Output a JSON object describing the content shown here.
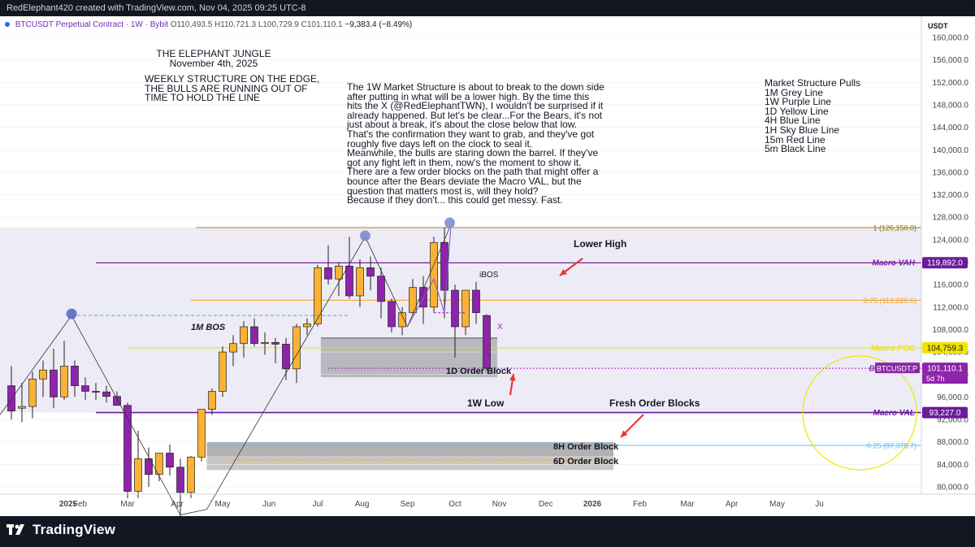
{
  "header": {
    "attribution": "RedElephant420 created with TradingView.com, Nov 04, 2025 09:25 UTC-8",
    "symbol_line": "BTCUSDT Perpetual Contract · 1W · Bybit",
    "ohlc": "O110,493.5  H110,721.3  L100,729.9  C101,110.1",
    "change": "−9,383.4 (−8.49%)",
    "currency": "USDT"
  },
  "footer": {
    "brand": "TradingView"
  },
  "text_notes": {
    "title_line1": "THE ELEPHANT JUNGLE",
    "title_line2": "November 4th, 2025",
    "subtitle": "WEEKLY STRUCTURE ON THE EDGE,\nTHE BULLS ARE RUNNING OUT OF\nTIME TO HOLD THE LINE",
    "body": "The 1W Market Structure is about to break to the down side\nafter putting in what will be a lower high. By the time this\nhits the X (@RedElephantTWN), I wouldn't be surprised if it\nalready happened. But let's be clear...For the Bears, it's not\njust about a break, it's about the close below that low.\nThat's the confirmation they want to grab, and they've got\nroughly five days left on the clock to seal it.\nMeanwhile, the bulls are staring down the barrel. If they've\ngot any fight left in them, now's the moment to show it.\nThere are a few order blocks on the path that might offer a\nbounce after the Bears deviate the Macro VAL, but the\nquestion that matters most is, will they hold?\nBecause if they don't... this could get messy. Fast.",
    "legend": "Market Structure Pulls\n1M Grey Line\n1W Purple Line\n1D Yellow Line\n4H Blue Line\n1H Sky Blue Line\n15m Red Line\n5m Black Line"
  },
  "chart_data": {
    "type": "candlestick",
    "symbol": "BTCUSDT.P",
    "timeframe": "1W",
    "ylim": [
      78000,
      162000
    ],
    "y_ticks": [
      80000,
      84000,
      88000,
      92000,
      96000,
      100000,
      104000,
      108000,
      112000,
      116000,
      120000,
      124000,
      128000,
      132000,
      136000,
      140000,
      144000,
      148000,
      152000,
      156000,
      160000
    ],
    "y_tick_labels": [
      "80,000.0",
      "84,000.0",
      "88,000.0",
      "92,000.0",
      "96,000.0",
      "100,000.0",
      "104,000.0",
      "108,000.0",
      "112,000.0",
      "116,000.0",
      "120,000.0",
      "124,000.0",
      "128,000.0",
      "132,000.0",
      "136,000.0",
      "140,000.0",
      "144,000.0",
      "148,000.0",
      "152,000.0",
      "156,000.0",
      "160,000.0"
    ],
    "x_tick_labels": [
      "2025",
      "Feb",
      "Mar",
      "Apr",
      "May",
      "Jun",
      "Jul",
      "Aug",
      "Sep",
      "Oct",
      "Nov",
      "Dec",
      "2026",
      "Feb",
      "Mar",
      "Apr",
      "May",
      "Ju"
    ],
    "x_tick_index": [
      2,
      6.5,
      11,
      15.7,
      20,
      24.4,
      29,
      33.2,
      37.5,
      42,
      46.2,
      50.6,
      55,
      59.5,
      64,
      68.2,
      72.5,
      76.5
    ],
    "candles": [
      {
        "o": 98000,
        "h": 101500,
        "l": 92000,
        "c": 93500
      },
      {
        "o": 94000,
        "h": 98500,
        "l": 91500,
        "c": 94300
      },
      {
        "o": 94300,
        "h": 100500,
        "l": 92200,
        "c": 99200
      },
      {
        "o": 99200,
        "h": 102500,
        "l": 96000,
        "c": 100800
      },
      {
        "o": 100800,
        "h": 104600,
        "l": 94000,
        "c": 96000
      },
      {
        "o": 96000,
        "h": 106000,
        "l": 95500,
        "c": 101500
      },
      {
        "o": 101500,
        "h": 102500,
        "l": 96000,
        "c": 98000
      },
      {
        "o": 98000,
        "h": 99500,
        "l": 95500,
        "c": 97000
      },
      {
        "o": 97000,
        "h": 98500,
        "l": 95500,
        "c": 96900
      },
      {
        "o": 96900,
        "h": 98000,
        "l": 95000,
        "c": 96100
      },
      {
        "o": 96100,
        "h": 97000,
        "l": 94500,
        "c": 94500
      },
      {
        "o": 94500,
        "h": 95000,
        "l": 78000,
        "c": 79200
      },
      {
        "o": 79200,
        "h": 90000,
        "l": 78000,
        "c": 85000
      },
      {
        "o": 85000,
        "h": 87000,
        "l": 80000,
        "c": 82200
      },
      {
        "o": 82200,
        "h": 86000,
        "l": 81000,
        "c": 86000
      },
      {
        "o": 86000,
        "h": 87500,
        "l": 82000,
        "c": 83500
      },
      {
        "o": 83500,
        "h": 85000,
        "l": 74500,
        "c": 79000
      },
      {
        "o": 79000,
        "h": 85500,
        "l": 78000,
        "c": 85300
      },
      {
        "o": 85300,
        "h": 93000,
        "l": 84500,
        "c": 93800
      },
      {
        "o": 93800,
        "h": 97500,
        "l": 92800,
        "c": 97000
      },
      {
        "o": 97000,
        "h": 105000,
        "l": 96000,
        "c": 104000
      },
      {
        "o": 104000,
        "h": 107000,
        "l": 101500,
        "c": 105500
      },
      {
        "o": 105500,
        "h": 109500,
        "l": 103000,
        "c": 108500
      },
      {
        "o": 108500,
        "h": 110000,
        "l": 105000,
        "c": 105500
      },
      {
        "o": 105500,
        "h": 107500,
        "l": 103500,
        "c": 105700
      },
      {
        "o": 105700,
        "h": 106500,
        "l": 102000,
        "c": 105400
      },
      {
        "o": 105400,
        "h": 106500,
        "l": 99000,
        "c": 101000
      },
      {
        "o": 101000,
        "h": 109000,
        "l": 98500,
        "c": 108500
      },
      {
        "o": 108500,
        "h": 110000,
        "l": 107000,
        "c": 109000
      },
      {
        "o": 109000,
        "h": 119500,
        "l": 108500,
        "c": 119000
      },
      {
        "o": 119000,
        "h": 123000,
        "l": 116000,
        "c": 117000
      },
      {
        "o": 117000,
        "h": 120000,
        "l": 114000,
        "c": 119300
      },
      {
        "o": 119300,
        "h": 124500,
        "l": 113500,
        "c": 114000
      },
      {
        "o": 114000,
        "h": 120500,
        "l": 112000,
        "c": 119000
      },
      {
        "o": 119000,
        "h": 121000,
        "l": 115000,
        "c": 117500
      },
      {
        "o": 117500,
        "h": 119000,
        "l": 110000,
        "c": 113000
      },
      {
        "o": 113000,
        "h": 113500,
        "l": 107500,
        "c": 108500
      },
      {
        "o": 108500,
        "h": 112000,
        "l": 107000,
        "c": 111000
      },
      {
        "o": 111000,
        "h": 117000,
        "l": 110500,
        "c": 115500
      },
      {
        "o": 115500,
        "h": 117500,
        "l": 109000,
        "c": 112000
      },
      {
        "o": 112000,
        "h": 124500,
        "l": 111000,
        "c": 123500
      },
      {
        "o": 123500,
        "h": 126200,
        "l": 110000,
        "c": 115000
      },
      {
        "o": 115000,
        "h": 116000,
        "l": 103000,
        "c": 108500
      },
      {
        "o": 108500,
        "h": 115000,
        "l": 107000,
        "c": 115000
      },
      {
        "o": 115000,
        "h": 116500,
        "l": 109000,
        "c": 111000
      },
      {
        "o": 110493.5,
        "h": 110721.3,
        "l": 100729.9,
        "c": 101110.1
      }
    ],
    "levels": [
      {
        "label": "1 (126,150.0)",
        "value": 126150,
        "color": "#b8860b",
        "style": "solid"
      },
      {
        "label": "Macro VAH",
        "tag": "119,892.0",
        "value": 119892,
        "color": "#7b1fa2",
        "style": "solid"
      },
      {
        "label": "0.75 (113,226.6)",
        "value": 113226.6,
        "color": "#f5a623",
        "style": "solid"
      },
      {
        "label": "Macro POC",
        "tag": "104,759.3",
        "value": 104759.3,
        "color": "#f0e500",
        "style": "solid"
      },
      {
        "label": "BTCUSDT.P",
        "tag": "101,110.1",
        "sub": "5d 7h",
        "value": 101110.1,
        "color": "#9c27b0",
        "style": "dotted"
      },
      {
        "label": "Macro VAL",
        "tag": "93,227.0",
        "value": 93227,
        "color": "#6a1b9a",
        "style": "solid"
      },
      {
        "label": "0.25 (87,379.7)",
        "value": 87379.7,
        "color": "#4fc3f7",
        "style": "solid"
      }
    ],
    "annotations": {
      "bos_1m": "1M BOS",
      "ibos": "iBOS",
      "x_mark": "X",
      "order_block_1d": "1D Order Block",
      "order_block_8h": "8H Order Block",
      "order_block_6d": "6D Order Block",
      "low_1w": "1W Low",
      "lower_high": "Lower High",
      "fresh_blocks": "Fresh Order Blocks"
    },
    "colors": {
      "up": "#f9b233",
      "down": "#8e24aa",
      "panel_bg": "#ffffff",
      "shade": "#e7e4f3",
      "order_block": "#9e9e9e"
    }
  }
}
